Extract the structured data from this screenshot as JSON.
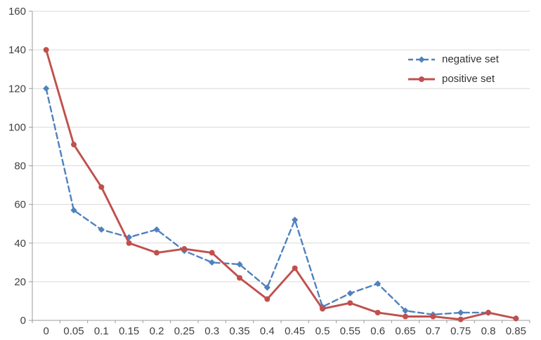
{
  "chart_data": {
    "type": "line",
    "title": "",
    "xlabel": "",
    "ylabel": "",
    "categories": [
      "0",
      "0.05",
      "0.1",
      "0.15",
      "0.2",
      "0.25",
      "0.3",
      "0.35",
      "0.4",
      "0.45",
      "0.5",
      "0.55",
      "0.6",
      "0.65",
      "0.7",
      "0.75",
      "0.8",
      "0.85"
    ],
    "series": [
      {
        "name": "negative set",
        "color": "#4f81bd",
        "dash": "dashed",
        "marker": "diamond",
        "values": [
          120,
          57,
          47,
          43,
          47,
          36,
          30,
          29,
          17,
          52,
          7,
          14,
          19,
          5,
          3,
          4,
          4,
          1
        ]
      },
      {
        "name": "positive set",
        "color": "#c0504d",
        "dash": "solid",
        "marker": "circle",
        "values": [
          140,
          91,
          69,
          40,
          35,
          37,
          35,
          22,
          11,
          27,
          6,
          9,
          4,
          2,
          2,
          0.5,
          4,
          1
        ]
      }
    ],
    "ylim": [
      0,
      160
    ],
    "ytick_step": 20,
    "grid": "horizontal",
    "legend_position": "right-top",
    "grid_color": "#d9d9d9",
    "axis_color": "#9b9b9b"
  }
}
